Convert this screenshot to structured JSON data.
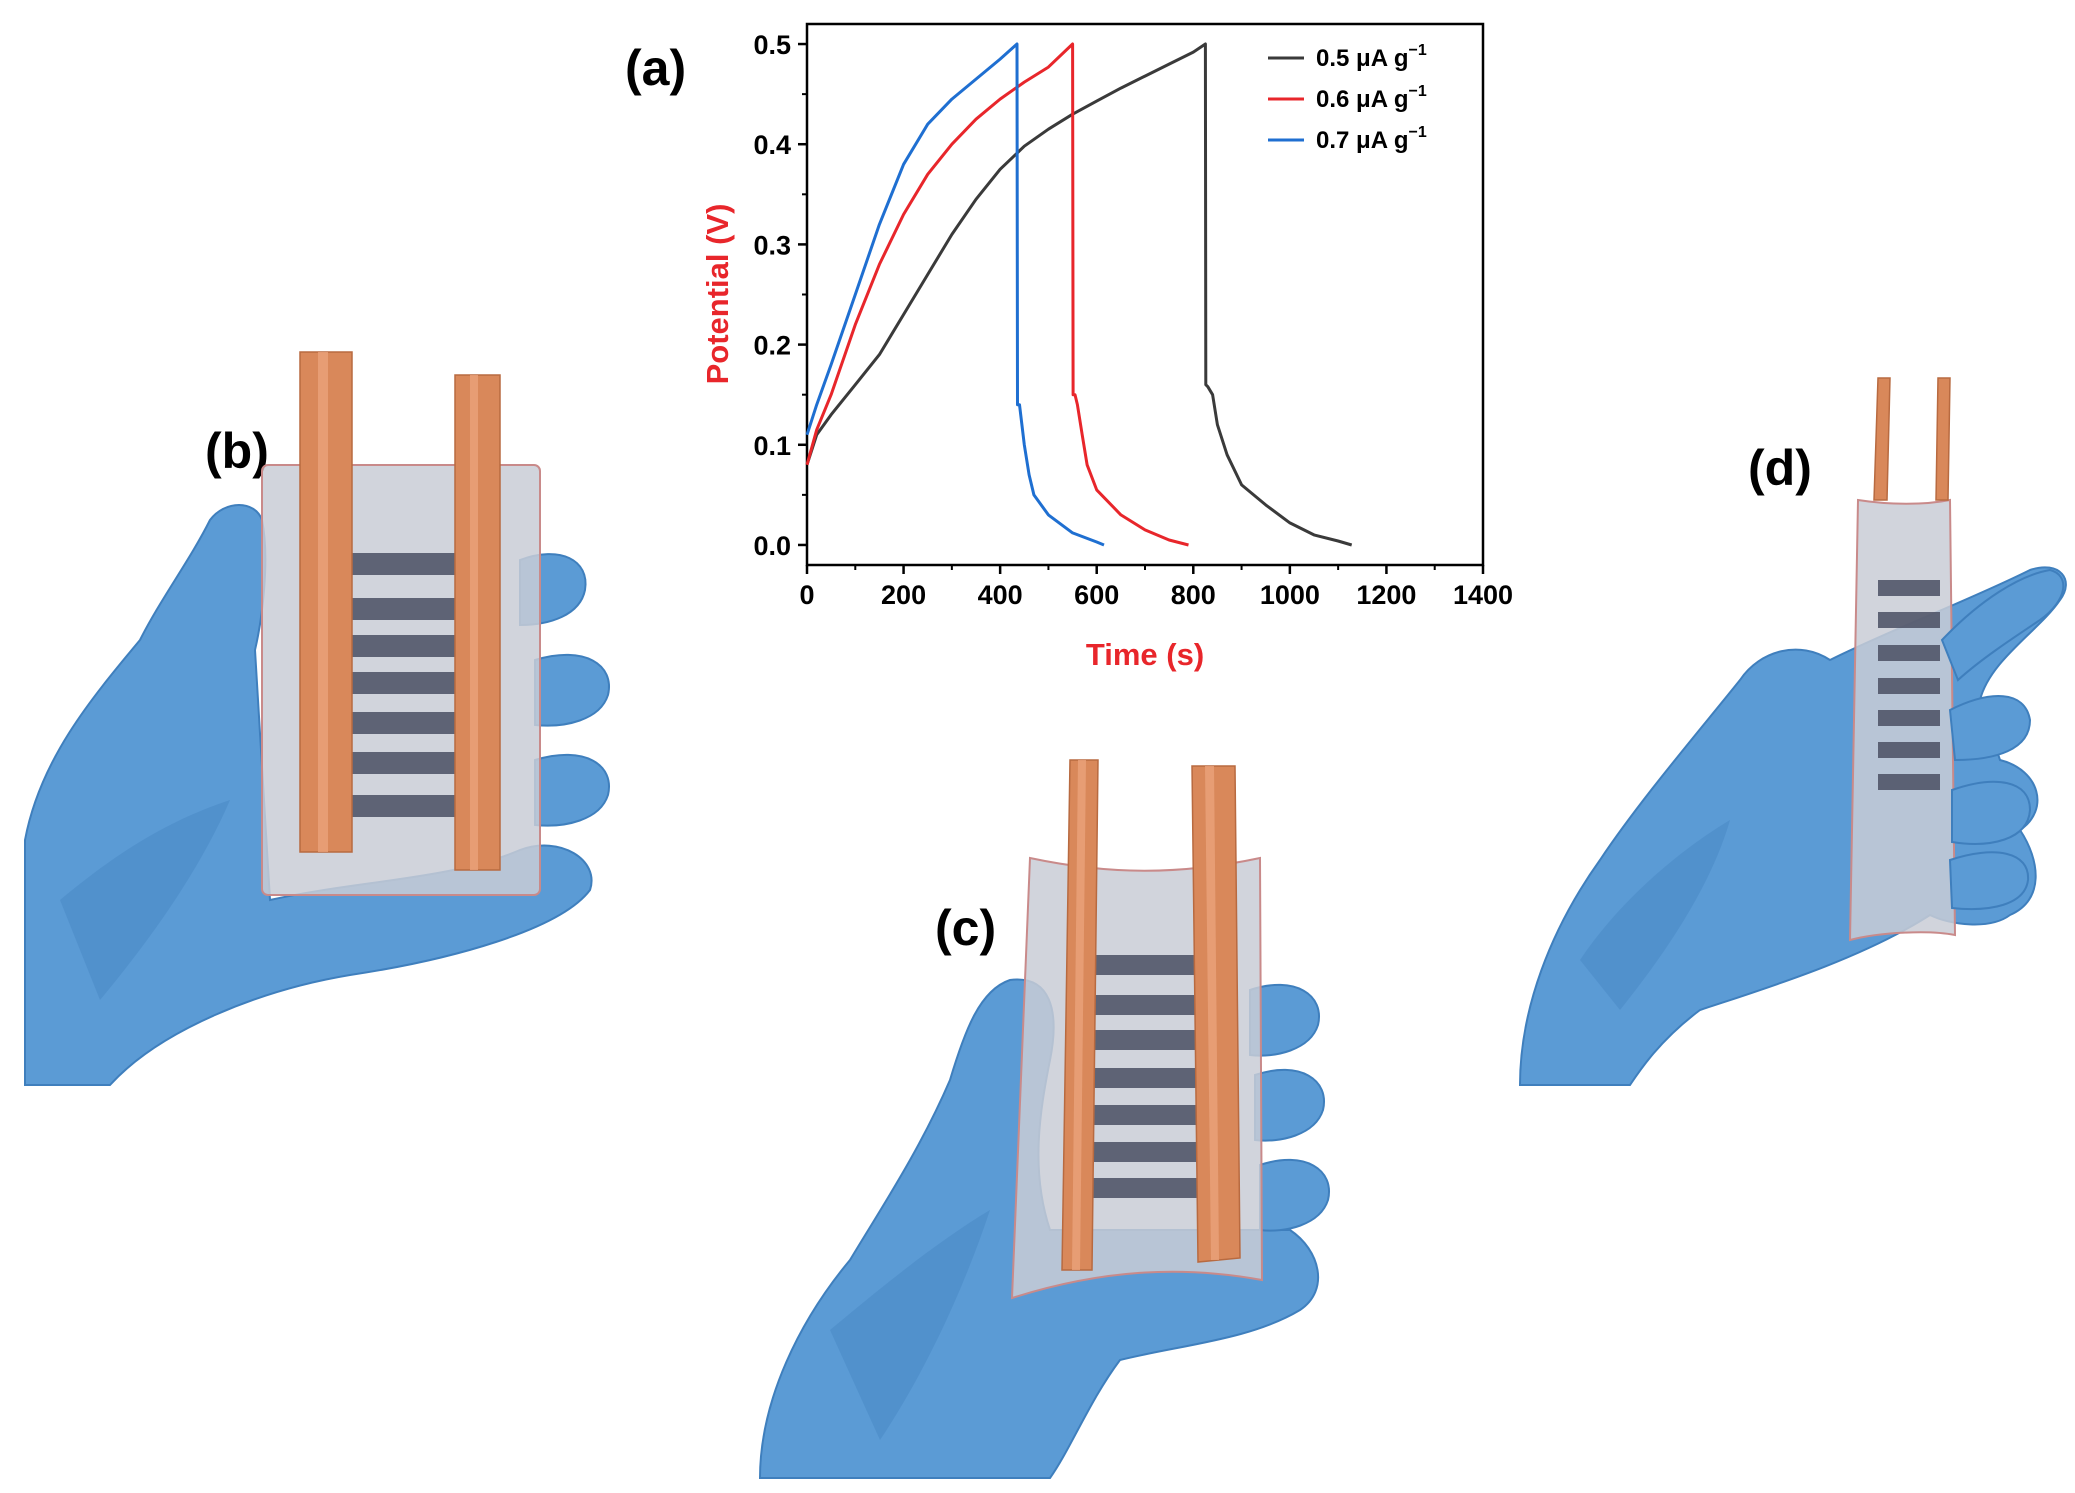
{
  "panel_labels": {
    "a": "(a)",
    "b": "(b)",
    "c": "(c)",
    "d": "(d)"
  },
  "colors": {
    "glove": "#5b9bd5",
    "glove_dark": "#3f7fbd",
    "glove_light": "#8ec0ea",
    "copper": "#d9885a",
    "copper_light": "#eaa37a",
    "film": "#c9ccd6",
    "electrode": "#4a4f63",
    "axis_title": "#e8262b"
  },
  "chart_data": {
    "type": "line",
    "xlabel": "Time (s)",
    "ylabel": "Potential (V)",
    "xlim": [
      0,
      1400
    ],
    "ylim": [
      -0.02,
      0.52
    ],
    "xticks": [
      0,
      200,
      400,
      600,
      800,
      1000,
      1200,
      1400
    ],
    "xtick_labels": [
      "0",
      "200",
      "400",
      "600",
      "800",
      "1000",
      "1200",
      "1400"
    ],
    "yticks": [
      0.0,
      0.1,
      0.2,
      0.3,
      0.4,
      0.5
    ],
    "ytick_labels": [
      "0.0",
      "0.1",
      "0.2",
      "0.3",
      "0.4",
      "0.5"
    ],
    "grid": false,
    "legend_position": "top-right",
    "series": [
      {
        "name": "0.5 μA g",
        "name_sup": "−1",
        "color": "#3a3a3a",
        "x": [
          0,
          20,
          50,
          100,
          150,
          200,
          250,
          300,
          350,
          400,
          450,
          500,
          550,
          600,
          650,
          700,
          750,
          800,
          825,
          826,
          830,
          840,
          850,
          870,
          900,
          950,
          1000,
          1050,
          1100,
          1128
        ],
        "y": [
          0.08,
          0.11,
          0.13,
          0.16,
          0.19,
          0.23,
          0.27,
          0.31,
          0.345,
          0.375,
          0.398,
          0.415,
          0.43,
          0.443,
          0.456,
          0.468,
          0.48,
          0.492,
          0.5,
          0.16,
          0.158,
          0.15,
          0.12,
          0.09,
          0.06,
          0.04,
          0.022,
          0.01,
          0.004,
          0.0
        ]
      },
      {
        "name": "0.6 μA g",
        "name_sup": "−1",
        "color": "#e8262b",
        "x": [
          0,
          20,
          50,
          100,
          150,
          200,
          250,
          300,
          350,
          400,
          450,
          500,
          550,
          551,
          555,
          560,
          570,
          580,
          600,
          650,
          700,
          750,
          790
        ],
        "y": [
          0.08,
          0.115,
          0.15,
          0.22,
          0.28,
          0.33,
          0.37,
          0.4,
          0.425,
          0.445,
          0.462,
          0.477,
          0.5,
          0.15,
          0.15,
          0.14,
          0.11,
          0.08,
          0.055,
          0.03,
          0.015,
          0.005,
          0.0
        ]
      },
      {
        "name": "0.7 μA g",
        "name_sup": "−1",
        "color": "#1f6fd1",
        "x": [
          0,
          20,
          50,
          100,
          150,
          200,
          250,
          300,
          350,
          400,
          435,
          436,
          440,
          445,
          450,
          460,
          470,
          500,
          550,
          600,
          615
        ],
        "y": [
          0.11,
          0.14,
          0.18,
          0.25,
          0.32,
          0.38,
          0.42,
          0.445,
          0.465,
          0.485,
          0.5,
          0.14,
          0.14,
          0.12,
          0.1,
          0.07,
          0.05,
          0.03,
          0.012,
          0.003,
          0.0
        ]
      }
    ]
  }
}
